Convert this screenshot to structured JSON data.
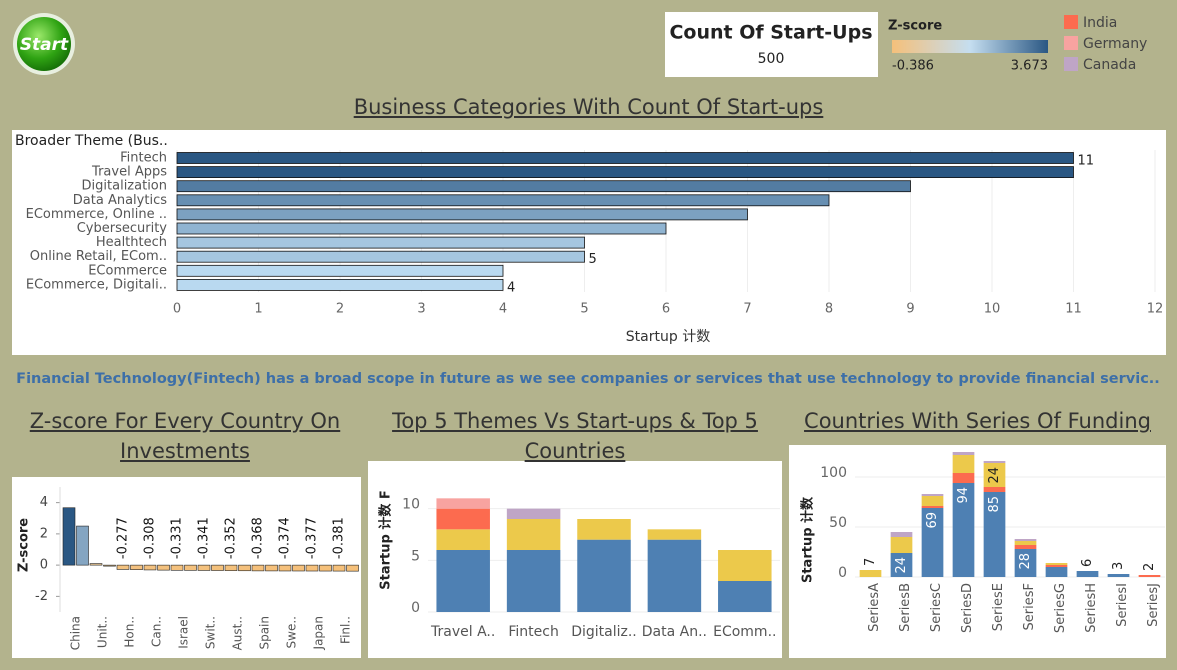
{
  "button": "Start",
  "kpi": {
    "title": "Count Of Start-Ups",
    "value": 500
  },
  "zscore_legend": {
    "title": "Z-score",
    "min": -0.386,
    "max": 3.673,
    "min_label": "-0.386",
    "max_label": "3.673",
    "colors": [
      "#f5c07a",
      "#c5def0",
      "#2a5783"
    ]
  },
  "caption": "Financial Technology(Fintech) has a broad scope in future as we see companies or services that use technology to provide financial servic..",
  "chart_data": [
    {
      "type": "hbar",
      "title": "Business Categories With Count Of Start-ups",
      "ylabel": "Broader Theme (Bus..",
      "xlabel": "Startup 计数",
      "categories": [
        "Fintech",
        "Travel Apps",
        "Digitalization",
        "Data Analytics",
        "ECommerce, Online ..",
        "Cybersecurity",
        "Healthtech",
        "Online Retail, ECom..",
        "ECommerce",
        "ECommerce, Digitali.."
      ],
      "values": [
        11,
        11,
        9,
        8,
        7,
        6,
        5,
        5,
        4,
        4
      ],
      "value_labels": [
        "11",
        null,
        null,
        null,
        null,
        null,
        null,
        "5",
        null,
        "4"
      ],
      "color_scale": [
        "#b9d9f0",
        "#2a5783"
      ],
      "xlim": [
        0,
        12
      ],
      "xticks": [
        0,
        1,
        2,
        3,
        4,
        5,
        6,
        7,
        8,
        9,
        10,
        11,
        12
      ],
      "grid": true
    },
    {
      "type": "zbar",
      "title": "Z-score For Every Country On Investments",
      "ylabel": "Z-score",
      "categories": [
        "China",
        null,
        "Unit..",
        null,
        "Hon..",
        null,
        "Can..",
        null,
        "Israel",
        null,
        "Swit..",
        null,
        "Aust..",
        null,
        "Spain",
        null,
        "Swe..",
        null,
        "Japan",
        null,
        "Finl..",
        null
      ],
      "values": [
        3.673,
        2.5,
        0.1,
        -0.05,
        -0.277,
        -0.29,
        -0.308,
        -0.32,
        -0.331,
        -0.335,
        -0.341,
        -0.345,
        -0.352,
        -0.36,
        -0.368,
        -0.37,
        -0.374,
        -0.375,
        -0.377,
        -0.379,
        -0.381,
        -0.386
      ],
      "value_labels": [
        null,
        null,
        null,
        null,
        "-0.277",
        null,
        "-0.308",
        null,
        "-0.331",
        null,
        "-0.341",
        null,
        "-0.352",
        null,
        "-0.368",
        null,
        "-0.374",
        null,
        "-0.377",
        null,
        "-0.381",
        null
      ],
      "ylim": [
        -3,
        5
      ],
      "yticks": [
        -2,
        0,
        2,
        4
      ]
    },
    {
      "type": "stack",
      "title": "Top 5 Themes Vs Start-ups & Top 5 Countries",
      "ylabel": "Startup 计数 F",
      "categories": [
        "Travel A..",
        "Fintech",
        "Digitaliz..",
        "Data An..",
        "EComm.."
      ],
      "series": [
        {
          "color": "#4e80b3",
          "values": [
            6,
            6,
            7,
            7,
            3
          ]
        },
        {
          "color": "#ecc94b",
          "values": [
            2,
            3,
            2,
            1,
            3
          ]
        },
        {
          "name": "India",
          "color": "#fc6b4f",
          "values": [
            2,
            0,
            0,
            0,
            0
          ]
        },
        {
          "name": "Germany",
          "color": "#f8a3a0",
          "values": [
            1,
            0,
            0,
            0,
            0
          ]
        },
        {
          "name": "Canada",
          "color": "#bfa5c6",
          "values": [
            0,
            1,
            0,
            0,
            0
          ]
        }
      ],
      "ylim": [
        0,
        12
      ],
      "yticks": [
        0,
        5,
        10
      ],
      "grid": true,
      "legend": "top-right"
    },
    {
      "type": "stack",
      "title": "Countries With Series Of Funding",
      "ylabel": "Startup 计数",
      "categories": [
        "SeriesA",
        "SeriesB",
        "SeriesC",
        "SeriesD",
        "SeriesE",
        "SeriesF",
        "SeriesG",
        "SeriesH",
        "SeriesI",
        "SeriesJ"
      ],
      "series": [
        {
          "color": "#4e80b3",
          "values": [
            0,
            24,
            69,
            94,
            85,
            28,
            10,
            6,
            3,
            0
          ],
          "value_labels": [
            null,
            "24",
            "69",
            "94",
            "85",
            "28",
            null,
            "6",
            "3",
            null
          ]
        },
        {
          "color": "#fc6b4f",
          "values": [
            0,
            0,
            2,
            10,
            5,
            4,
            2,
            0,
            0,
            2
          ],
          "value_labels": [
            null,
            null,
            null,
            null,
            null,
            null,
            null,
            null,
            null,
            "2"
          ]
        },
        {
          "color": "#ecc94b",
          "values": [
            7,
            16,
            10,
            18,
            24,
            4,
            2,
            0,
            0,
            0
          ],
          "value_labels": [
            "7",
            null,
            null,
            null,
            "24",
            null,
            null,
            null,
            null,
            null
          ]
        },
        {
          "color": "#bfa5c6",
          "values": [
            0,
            5,
            2,
            3,
            2,
            2,
            0,
            0,
            0,
            0
          ]
        }
      ],
      "ylim": [
        0,
        132
      ],
      "yticks": [
        0,
        50,
        100
      ],
      "grid": true,
      "rotate_labels": true
    }
  ]
}
